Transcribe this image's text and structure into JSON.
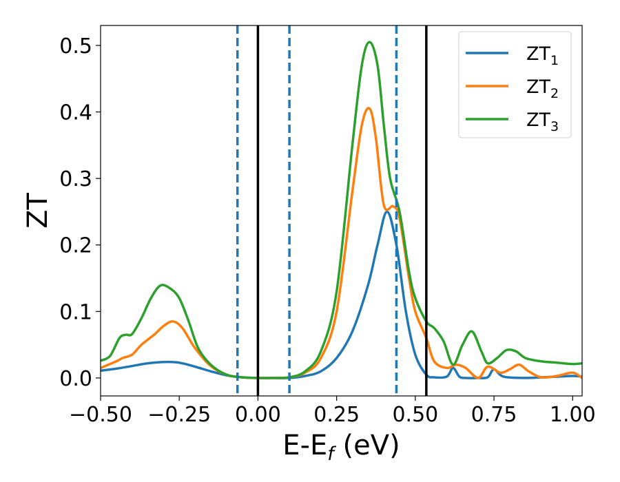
{
  "chart_data": {
    "type": "line",
    "xlabel": {
      "main": "E-E",
      "sub": "f",
      "unit": " (eV)"
    },
    "ylabel": "ZT",
    "xlim": [
      -0.5,
      1.03
    ],
    "ylim": [
      -0.027,
      0.53
    ],
    "xticks": [
      -0.5,
      -0.25,
      0.0,
      0.25,
      0.5,
      0.75,
      1.0
    ],
    "xtick_labels": [
      "−0.50",
      "−0.25",
      "0.00",
      "0.25",
      "0.50",
      "0.75",
      "1.00"
    ],
    "yticks": [
      0.0,
      0.1,
      0.2,
      0.3,
      0.4,
      0.5
    ],
    "ytick_labels": [
      "0.0",
      "0.1",
      "0.2",
      "0.3",
      "0.4",
      "0.5"
    ],
    "grid": false,
    "legend_position": "top-right",
    "vlines": [
      {
        "x": -0.065,
        "style": "dashed",
        "color": "#1f77b4"
      },
      {
        "x": 0.0,
        "style": "solid",
        "color": "#000000"
      },
      {
        "x": 0.1,
        "style": "dashed",
        "color": "#1f77b4"
      },
      {
        "x": 0.44,
        "style": "dashed",
        "color": "#1f77b4"
      },
      {
        "x": 0.535,
        "style": "solid",
        "color": "#000000"
      }
    ],
    "series": [
      {
        "name": "ZT",
        "name_sub": "1",
        "color": "#1f77b4",
        "x": [
          -0.5,
          -0.45,
          -0.4,
          -0.35,
          -0.3,
          -0.25,
          -0.2,
          -0.15,
          -0.1,
          -0.05,
          0.0,
          0.05,
          0.1,
          0.15,
          0.2,
          0.25,
          0.3,
          0.35,
          0.38,
          0.41,
          0.44,
          0.47,
          0.5,
          0.535,
          0.56,
          0.6,
          0.62,
          0.64,
          0.66,
          0.7,
          0.73,
          0.75,
          0.78,
          0.85,
          0.9,
          0.95,
          1.0,
          1.03
        ],
        "y": [
          0.011,
          0.014,
          0.018,
          0.022,
          0.024,
          0.023,
          0.017,
          0.01,
          0.004,
          0.001,
          0.0,
          0.0,
          0.0,
          0.003,
          0.01,
          0.03,
          0.07,
          0.14,
          0.2,
          0.25,
          0.2,
          0.1,
          0.035,
          0.005,
          0.001,
          0.002,
          0.015,
          0.002,
          0.0,
          0.0,
          0.001,
          0.013,
          0.002,
          0.0,
          0.001,
          0.002,
          0.003,
          0.002
        ]
      },
      {
        "name": "ZT",
        "name_sub": "2",
        "color": "#ff7f0e",
        "x": [
          -0.5,
          -0.45,
          -0.43,
          -0.4,
          -0.37,
          -0.33,
          -0.3,
          -0.27,
          -0.24,
          -0.2,
          -0.15,
          -0.1,
          -0.05,
          0.0,
          0.05,
          0.1,
          0.15,
          0.2,
          0.25,
          0.3,
          0.33,
          0.355,
          0.375,
          0.4,
          0.43,
          0.45,
          0.48,
          0.5,
          0.535,
          0.56,
          0.6,
          0.63,
          0.66,
          0.7,
          0.73,
          0.77,
          0.8,
          0.83,
          0.86,
          0.9,
          0.95,
          1.0,
          1.03
        ],
        "y": [
          0.015,
          0.025,
          0.03,
          0.035,
          0.05,
          0.065,
          0.078,
          0.085,
          0.075,
          0.045,
          0.018,
          0.005,
          0.001,
          0.0,
          0.0,
          0.001,
          0.008,
          0.03,
          0.1,
          0.28,
          0.38,
          0.405,
          0.36,
          0.26,
          0.258,
          0.24,
          0.15,
          0.1,
          0.06,
          0.025,
          0.015,
          0.02,
          0.015,
          0.0,
          0.017,
          0.008,
          0.013,
          0.02,
          0.01,
          0.001,
          0.003,
          0.008,
          0.0
        ]
      },
      {
        "name": "ZT",
        "name_sub": "3",
        "color": "#2ca02c",
        "x": [
          -0.5,
          -0.47,
          -0.44,
          -0.42,
          -0.4,
          -0.37,
          -0.34,
          -0.31,
          -0.28,
          -0.25,
          -0.22,
          -0.19,
          -0.15,
          -0.1,
          -0.05,
          0.0,
          0.05,
          0.1,
          0.15,
          0.2,
          0.25,
          0.3,
          0.33,
          0.355,
          0.38,
          0.4,
          0.42,
          0.45,
          0.48,
          0.5,
          0.535,
          0.56,
          0.59,
          0.62,
          0.65,
          0.68,
          0.71,
          0.73,
          0.76,
          0.79,
          0.82,
          0.85,
          0.9,
          0.95,
          1.0,
          1.03
        ],
        "y": [
          0.026,
          0.033,
          0.06,
          0.065,
          0.066,
          0.09,
          0.12,
          0.139,
          0.135,
          0.12,
          0.085,
          0.045,
          0.02,
          0.005,
          0.001,
          0.0,
          0.0,
          0.001,
          0.01,
          0.04,
          0.13,
          0.35,
          0.47,
          0.505,
          0.47,
          0.38,
          0.3,
          0.25,
          0.16,
          0.12,
          0.085,
          0.075,
          0.055,
          0.02,
          0.05,
          0.07,
          0.04,
          0.022,
          0.03,
          0.042,
          0.04,
          0.03,
          0.025,
          0.023,
          0.021,
          0.022
        ]
      }
    ]
  }
}
